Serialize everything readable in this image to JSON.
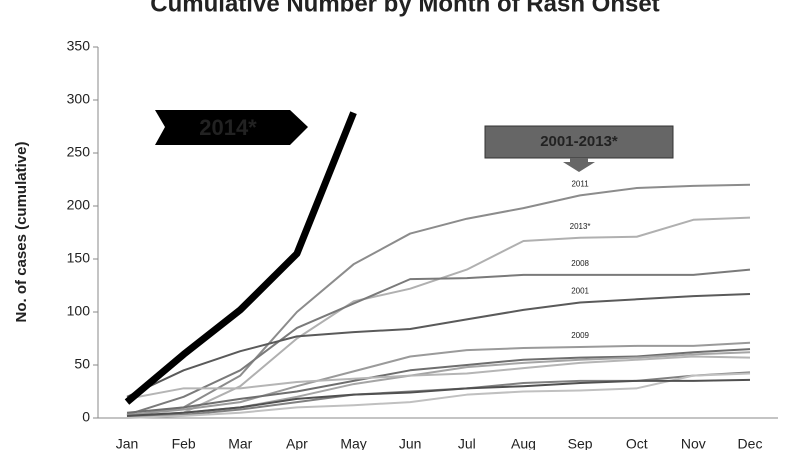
{
  "chart_data": {
    "type": "line",
    "title": "Cumulative Number by Month of Rash Onset",
    "y_label": "No. of cases (cumulative)",
    "annotations": [
      "2014*",
      "2001-2013*"
    ],
    "categories": [
      "Jan",
      "Feb",
      "Mar",
      "Apr",
      "May",
      "Jun",
      "Jul",
      "Aug",
      "Sep",
      "Oct",
      "Nov",
      "Dec"
    ],
    "ylim": [
      0,
      350
    ],
    "yticks": [
      0,
      50,
      100,
      150,
      200,
      250,
      300,
      350
    ],
    "series": [
      {
        "name": "2011",
        "color": "#8c8c8c",
        "values": [
          2,
          10,
          40,
          100,
          145,
          174,
          188,
          198,
          210,
          217,
          219,
          220
        ]
      },
      {
        "name": "2013*",
        "color": "#b0b0b0",
        "values": [
          1,
          5,
          30,
          75,
          110,
          122,
          140,
          167,
          170,
          171,
          187,
          189
        ]
      },
      {
        "name": "2008",
        "color": "#7a7a7a",
        "values": [
          3,
          20,
          45,
          85,
          108,
          131,
          132,
          135,
          135,
          135,
          135,
          140
        ]
      },
      {
        "name": "2001",
        "color": "#5a5a5a",
        "values": [
          20,
          45,
          63,
          77,
          81,
          84,
          93,
          102,
          109,
          112,
          115,
          117
        ]
      },
      {
        "name": "2009",
        "color": "#9a9a9a",
        "values": [
          3,
          8,
          15,
          30,
          44,
          58,
          64,
          66,
          67,
          68,
          68,
          71
        ]
      },
      {
        "color": "#6e6e6e",
        "values": [
          5,
          10,
          18,
          25,
          35,
          45,
          50,
          55,
          57,
          58,
          62,
          65
        ]
      },
      {
        "color": "#a5a5a5",
        "values": [
          2,
          5,
          10,
          20,
          32,
          40,
          48,
          52,
          55,
          57,
          60,
          62
        ]
      },
      {
        "color": "#b5b5b5",
        "values": [
          18,
          28,
          28,
          34,
          37,
          40,
          42,
          47,
          52,
          55,
          58,
          57
        ]
      },
      {
        "color": "#808080",
        "values": [
          1,
          3,
          8,
          15,
          22,
          25,
          28,
          33,
          35,
          35,
          40,
          43
        ]
      },
      {
        "color": "#c0c0c0",
        "values": [
          0,
          2,
          5,
          10,
          12,
          15,
          22,
          25,
          26,
          28,
          40,
          42
        ]
      },
      {
        "color": "#505050",
        "values": [
          2,
          5,
          10,
          18,
          22,
          24,
          28,
          30,
          33,
          35,
          35,
          36
        ]
      },
      {
        "name": "2014",
        "color": "#000000",
        "values": [
          15,
          60,
          102,
          155,
          288,
          null,
          null,
          null,
          null,
          null,
          null,
          null
        ]
      }
    ]
  }
}
